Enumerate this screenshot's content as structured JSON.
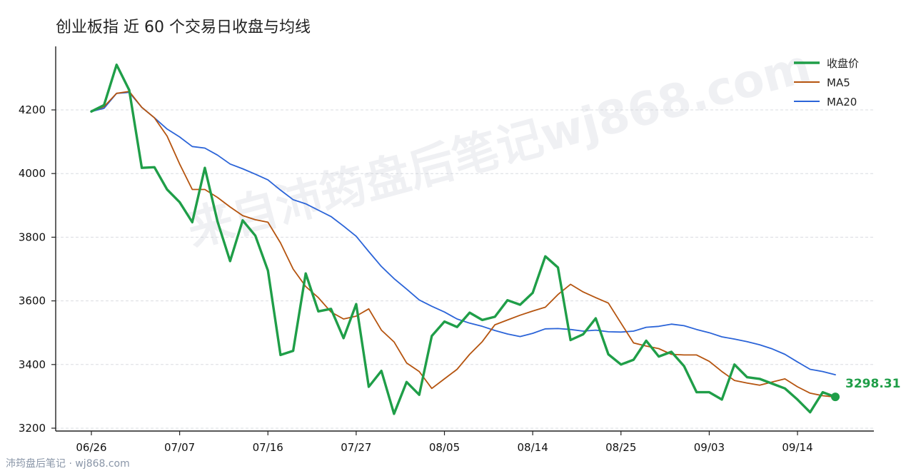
{
  "chart_data": {
    "type": "line",
    "title": "创业板指 近 60 个交易日收盘与均线",
    "xlabel": "",
    "ylabel": "",
    "ylim": [
      3180,
      4330
    ],
    "yticks": [
      3200,
      3400,
      3600,
      3800,
      4000,
      4200
    ],
    "xtick_labels": [
      "06/26",
      "07/07",
      "07/16",
      "07/27",
      "08/05",
      "08/14",
      "08/25",
      "09/03",
      "09/14"
    ],
    "xtick_index": [
      0,
      7,
      14,
      21,
      28,
      35,
      42,
      49,
      56
    ],
    "grid": "horizontal dashed",
    "legend": "top-right",
    "series": [
      {
        "name": "收盘价",
        "color": "#1f9e48",
        "values": [
          4195,
          4215,
          4342,
          4262,
          4018,
          4020,
          3950,
          3910,
          3847,
          4018,
          3850,
          3725,
          3853,
          3805,
          3695,
          3430,
          3443,
          3686,
          3567,
          3575,
          3483,
          3590,
          3330,
          3380,
          3245,
          3345,
          3305,
          3490,
          3535,
          3518,
          3563,
          3540,
          3550,
          3602,
          3588,
          3625,
          3740,
          3705,
          3477,
          3495,
          3545,
          3432,
          3400,
          3415,
          3475,
          3425,
          3440,
          3395,
          3313,
          3313,
          3290,
          3400,
          3360,
          3355,
          3340,
          3325,
          3290,
          3250,
          3313,
          3298.31
        ]
      },
      {
        "name": "MA5",
        "color": "#b5540f",
        "values": [
          4195,
          4210,
          4252,
          4258,
          4208,
          4175,
          4118,
          4030,
          3950,
          3950,
          3925,
          3895,
          3868,
          3855,
          3847,
          3782,
          3700,
          3645,
          3610,
          3565,
          3543,
          3552,
          3575,
          3508,
          3471,
          3405,
          3378,
          3325,
          3355,
          3385,
          3432,
          3472,
          3525,
          3540,
          3555,
          3568,
          3580,
          3620,
          3652,
          3628,
          3610,
          3593,
          3530,
          3468,
          3458,
          3450,
          3432,
          3430,
          3430,
          3410,
          3378,
          3350,
          3342,
          3335,
          3345,
          3355,
          3330,
          3310,
          3302,
          3298
        ]
      },
      {
        "name": "MA20",
        "color": "#2b64d8",
        "values": [
          4195,
          4205,
          4252,
          4255,
          4208,
          4175,
          4140,
          4115,
          4085,
          4080,
          4058,
          4030,
          4015,
          3998,
          3980,
          3948,
          3918,
          3905,
          3885,
          3865,
          3835,
          3803,
          3755,
          3708,
          3670,
          3637,
          3603,
          3583,
          3565,
          3543,
          3530,
          3520,
          3507,
          3496,
          3488,
          3498,
          3512,
          3513,
          3510,
          3505,
          3508,
          3503,
          3502,
          3505,
          3517,
          3520,
          3527,
          3522,
          3510,
          3500,
          3487,
          3480,
          3472,
          3462,
          3449,
          3432,
          3408,
          3385,
          3378,
          3368
        ]
      }
    ],
    "end_label": "3298.31"
  },
  "watermark": "来自沛筠盘后笔记wj868.com",
  "footer": "沛筠盘后笔记 · wj868.com"
}
